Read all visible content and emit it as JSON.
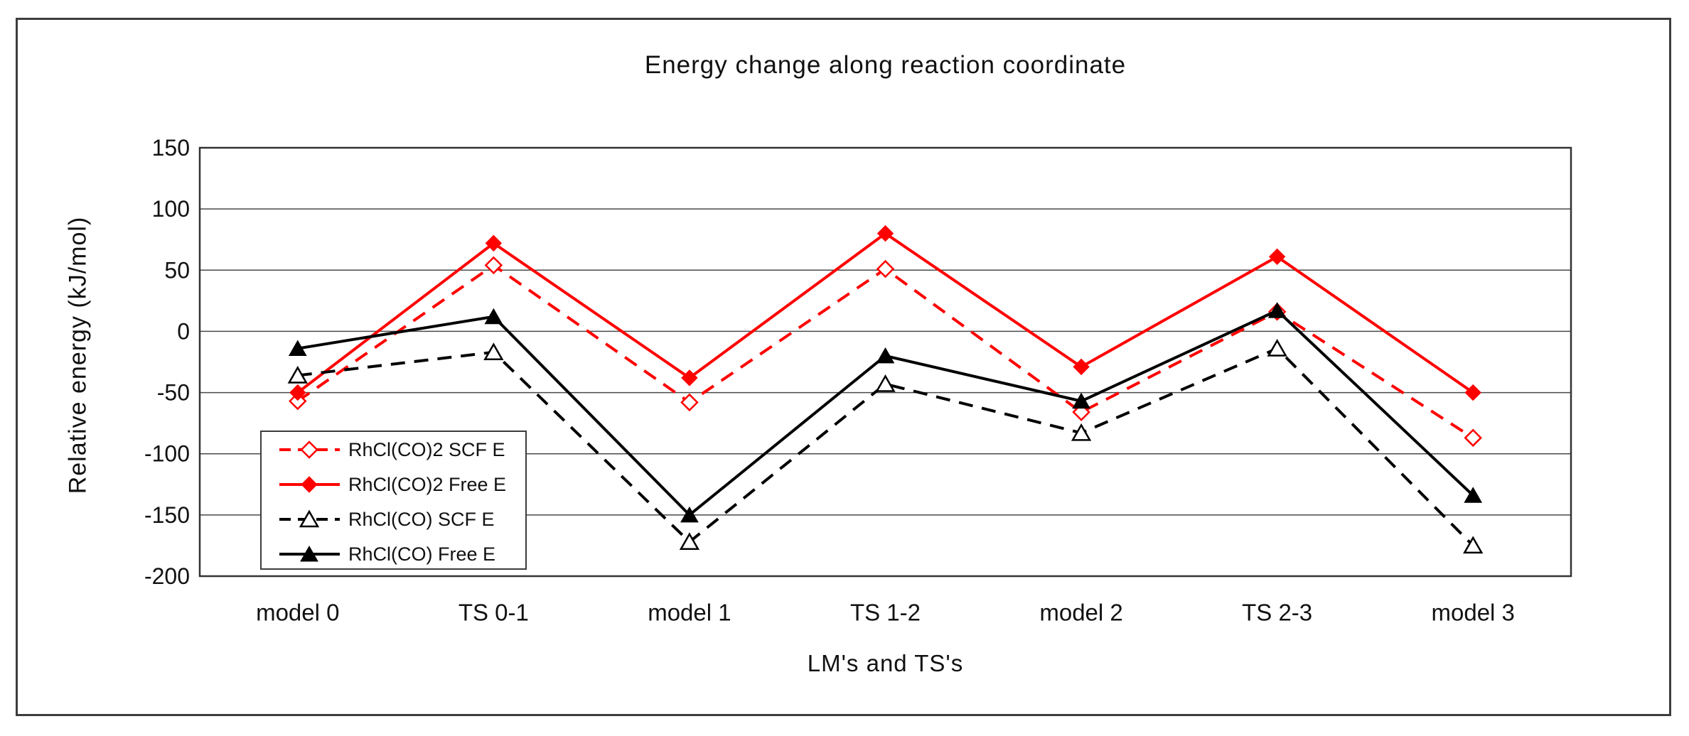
{
  "figure": {
    "title": "Energy change along reaction coordinate",
    "x_axis_title": "LM's and TS's",
    "y_axis_title": "Relative energy (kJ/mol)"
  },
  "chart_data": {
    "type": "line",
    "title": "Energy change along reaction coordinate",
    "xlabel": "LM's and TS's",
    "ylabel": "Relative energy (kJ/mol)",
    "categories": [
      "model 0",
      "TS 0-1",
      "model 1",
      "TS 1-2",
      "model 2",
      "TS 2-3",
      "model 3"
    ],
    "series": [
      {
        "name": "RhCl(CO)2 SCF E",
        "color": "#ff0000",
        "line_style": "dashed",
        "marker": "diamond-open",
        "values": [
          -57,
          54,
          -58,
          51,
          -66,
          16,
          -87
        ]
      },
      {
        "name": "RhCl(CO)2 Free E",
        "color": "#ff0000",
        "line_style": "solid",
        "marker": "diamond-filled",
        "values": [
          -50,
          72,
          -38,
          80,
          -29,
          61,
          -50
        ]
      },
      {
        "name": "RhCl(CO) SCF E",
        "color": "#000000",
        "line_style": "dashed",
        "marker": "triangle-open",
        "values": [
          -36,
          -17,
          -172,
          -43,
          -83,
          -14,
          -175
        ]
      },
      {
        "name": "RhCl(CO) Free E",
        "color": "#000000",
        "line_style": "solid",
        "marker": "triangle-filled",
        "values": [
          -14,
          12,
          -150,
          -20,
          -57,
          17,
          -134
        ]
      }
    ],
    "ylim": [
      -200,
      150
    ],
    "ytick_step": 50,
    "ytick_labels": [
      "150",
      "100",
      "50",
      "0",
      "-50",
      "-100",
      "-150",
      "-200"
    ],
    "grid": true,
    "legend_position": "inside-bottom-left",
    "plot_border_color": "#333333",
    "gridline_color": "#4a4a4a"
  }
}
